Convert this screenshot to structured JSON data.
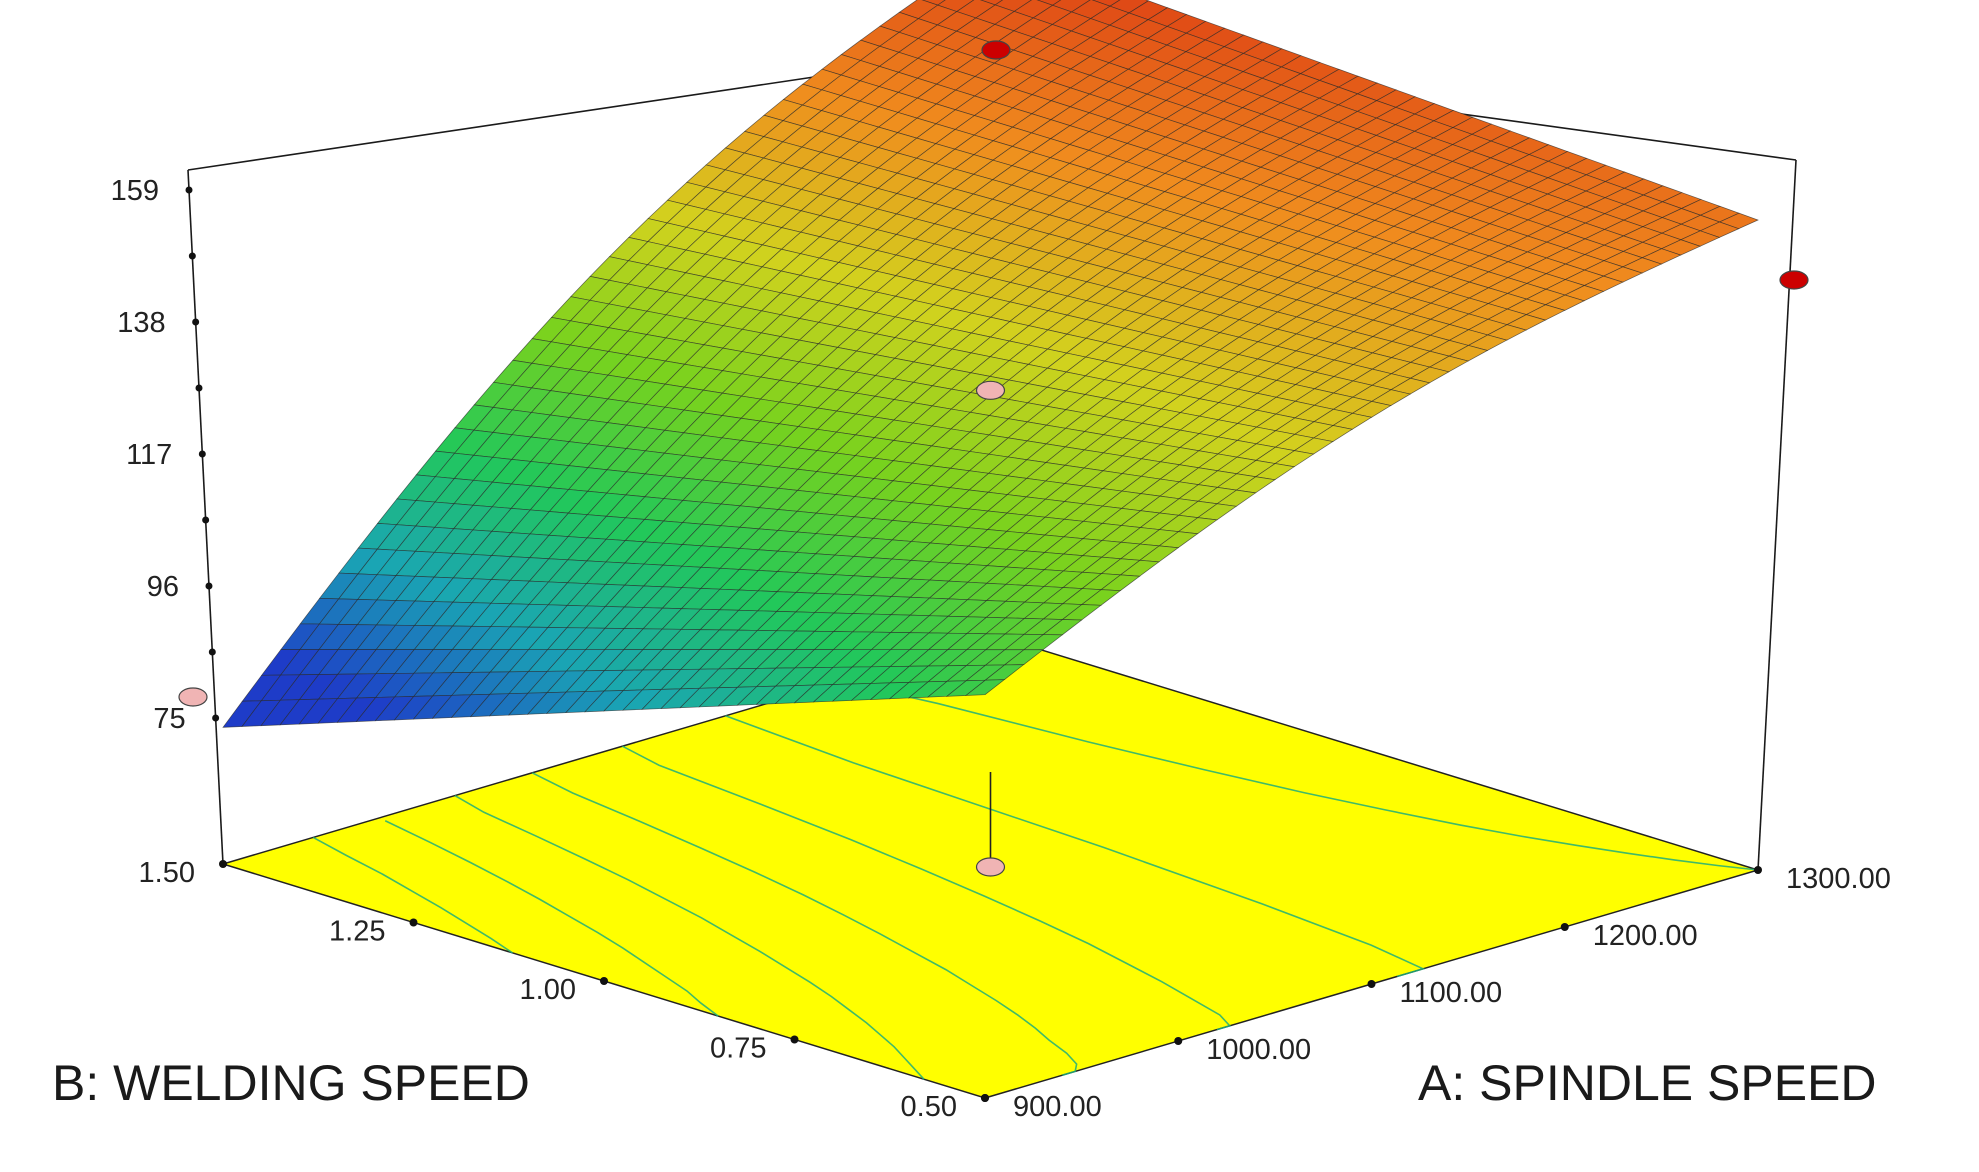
{
  "chart_data": {
    "type": "surface3d",
    "xlabel": "A: SPINDLE SPEED",
    "ylabel": "B: WELDING SPEED",
    "zlabel": "",
    "x_ticks": [
      "900.00",
      "1000.00",
      "1100.00",
      "1200.00",
      "1300.00"
    ],
    "y_ticks": [
      "0.50",
      "0.75",
      "1.00",
      "1.25",
      "1.50"
    ],
    "z_ticks": [
      "75",
      "96",
      "117",
      "138",
      "159"
    ],
    "xlim": [
      900,
      1300
    ],
    "ylim": [
      0.5,
      1.5
    ],
    "zlim": [
      75,
      159
    ],
    "surface_values": {
      "x": [
        900,
        1300
      ],
      "y": [
        0.5,
        1.5
      ],
      "z_grid": [
        [
          113,
          145
        ],
        [
          86,
          149
        ]
      ],
      "note_points": [
        {
          "x": 900,
          "y": 0.5,
          "z": 113
        },
        {
          "x": 1300,
          "y": 0.5,
          "z": 145
        },
        {
          "x": 900,
          "y": 1.5,
          "z": 86
        },
        {
          "x": 1300,
          "y": 1.5,
          "z": 149
        },
        {
          "x": 1100,
          "y": 1.0,
          "z": 140
        }
      ]
    },
    "design_points": [
      {
        "x": 1100,
        "y": 1.0,
        "z": 130,
        "color": "#f0b4b4"
      },
      {
        "x": 900,
        "y": 1.5,
        "z": 75,
        "color": "#f0b4b4"
      },
      {
        "x": 1300,
        "y": 1.5,
        "z": 159,
        "color": "#cc0000"
      },
      {
        "x": 1300,
        "y": 0.5,
        "z": 159,
        "color": "#cc0000"
      },
      {
        "x": 1100,
        "y": 1.0,
        "z": 75,
        "color": "#f0b4b4"
      }
    ],
    "floor_color": "#ffff00",
    "colormap": [
      "#1e3cc8",
      "#1aa5b4",
      "#22c85a",
      "#78d21e",
      "#d2d21e",
      "#f08c1e",
      "#dc3c14"
    ]
  }
}
